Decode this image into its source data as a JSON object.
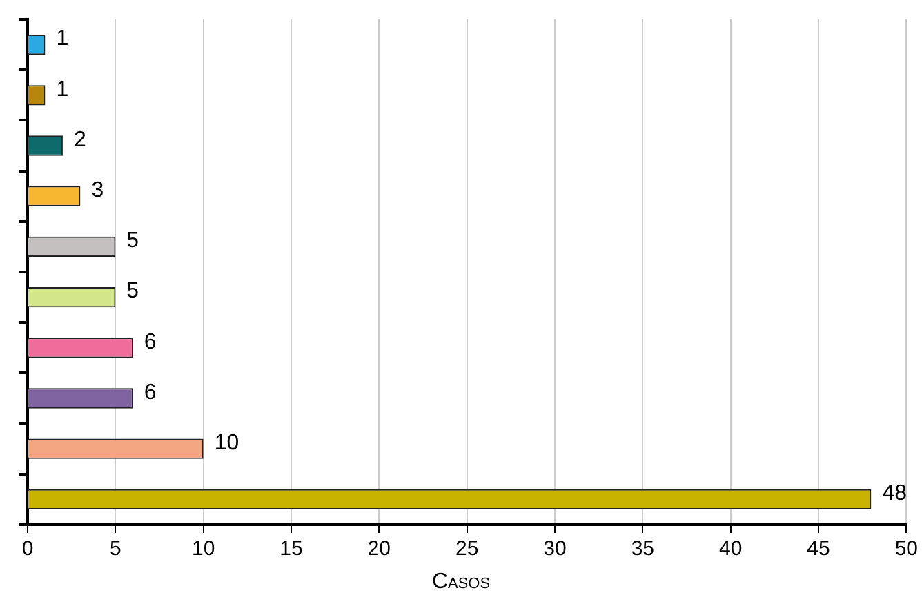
{
  "chart_data": {
    "type": "bar",
    "orientation": "horizontal",
    "xlabel": "Casos",
    "categories": [
      null,
      null,
      null,
      null,
      null,
      null,
      null,
      null,
      null,
      null
    ],
    "values": [
      1,
      1,
      2,
      3,
      5,
      5,
      6,
      6,
      10,
      48
    ],
    "colors": [
      "#29abe2",
      "#b8860b",
      "#0f6b6b",
      "#f7b731",
      "#c4c0c0",
      "#d4e68a",
      "#f06c9b",
      "#8064a2",
      "#f4a582",
      "#c8b400"
    ],
    "xlim": [
      0,
      50
    ],
    "xticks": [
      0,
      5,
      10,
      15,
      20,
      25,
      30,
      35,
      40,
      45,
      50
    ],
    "grid": "x",
    "data_labels": true,
    "tick_labels": "x",
    "legend": false
  }
}
